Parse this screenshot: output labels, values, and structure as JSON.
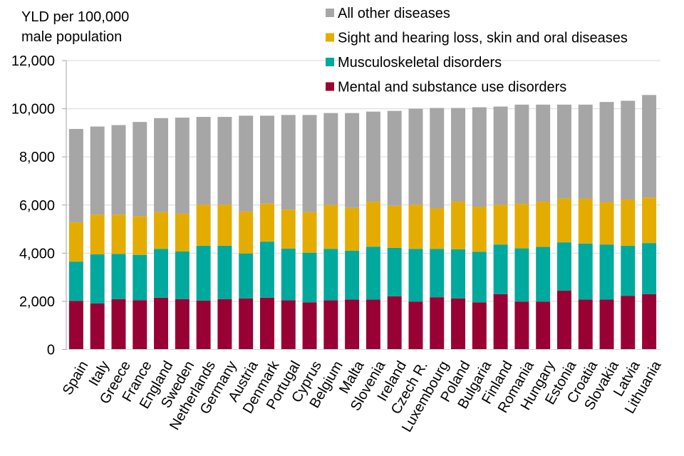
{
  "chart_data": {
    "type": "bar",
    "stacked": true,
    "title": "",
    "ylabel": [
      "YLD per 100,000",
      "male population"
    ],
    "xlabel": "",
    "ylim": [
      0,
      12000
    ],
    "yticks": [
      0,
      2000,
      4000,
      6000,
      8000,
      10000,
      12000
    ],
    "ytick_labels": [
      "0",
      "2,000",
      "4,000",
      "6,000",
      "8,000",
      "10,000",
      "12,000"
    ],
    "grid": true,
    "legend_position": "top-right",
    "categories": [
      "Spain",
      "Italy",
      "Greece",
      "France",
      "England",
      "Sweden",
      "Netherlands",
      "Germany",
      "Austria",
      "Denmark",
      "Portugal",
      "Cyprus",
      "Belgium",
      "Malta",
      "Slovenia",
      "Ireland",
      "Czech R.",
      "Luxembourg",
      "Poland",
      "Bulgaria",
      "Finland",
      "Romania",
      "Hungary",
      "Estonia",
      "Croatia",
      "Slovakia",
      "Latvia",
      "Lithuania"
    ],
    "series": [
      {
        "name": "Mental and substance use disorders",
        "color": "#990033",
        "values": [
          2020,
          1910,
          2090,
          2050,
          2150,
          2090,
          2030,
          2090,
          2120,
          2150,
          2040,
          1960,
          2040,
          2070,
          2070,
          2210,
          1990,
          2170,
          2120,
          1960,
          2300,
          1990,
          1990,
          2440,
          2070,
          2070,
          2230,
          2300
        ]
      },
      {
        "name": "Musculoskeletal disorders",
        "color": "#00A99D",
        "values": [
          1630,
          2040,
          1880,
          1880,
          2030,
          1980,
          2280,
          2220,
          1870,
          2330,
          2150,
          2060,
          2140,
          2030,
          2200,
          2010,
          2190,
          2010,
          2040,
          2100,
          2060,
          2210,
          2270,
          2010,
          2330,
          2290,
          2080,
          2120
        ]
      },
      {
        "name": "Sight and hearing loss, skin and oral diseases",
        "color": "#E5AC00",
        "values": [
          1630,
          1650,
          1630,
          1600,
          1520,
          1570,
          1700,
          1700,
          1740,
          1580,
          1620,
          1680,
          1820,
          1780,
          1870,
          1750,
          1830,
          1680,
          1980,
          1860,
          1650,
          1850,
          1880,
          1820,
          1860,
          1750,
          1920,
          1890
        ]
      },
      {
        "name": "All other diseases",
        "color": "#A6A6A6",
        "values": [
          3880,
          3660,
          3720,
          3920,
          3910,
          3990,
          3650,
          3650,
          3980,
          3650,
          3930,
          4040,
          3820,
          3940,
          3740,
          3940,
          3990,
          4170,
          3890,
          4140,
          4080,
          4120,
          4030,
          3900,
          3910,
          4170,
          4100,
          4260
        ]
      }
    ],
    "legend": [
      {
        "label": "All other diseases",
        "color": "#A6A6A6"
      },
      {
        "label": "Sight and hearing loss, skin and oral diseases",
        "color": "#E5AC00"
      },
      {
        "label": "Musculoskeletal disorders",
        "color": "#00A99D"
      },
      {
        "label": "Mental and substance use disorders",
        "color": "#990033"
      }
    ]
  }
}
